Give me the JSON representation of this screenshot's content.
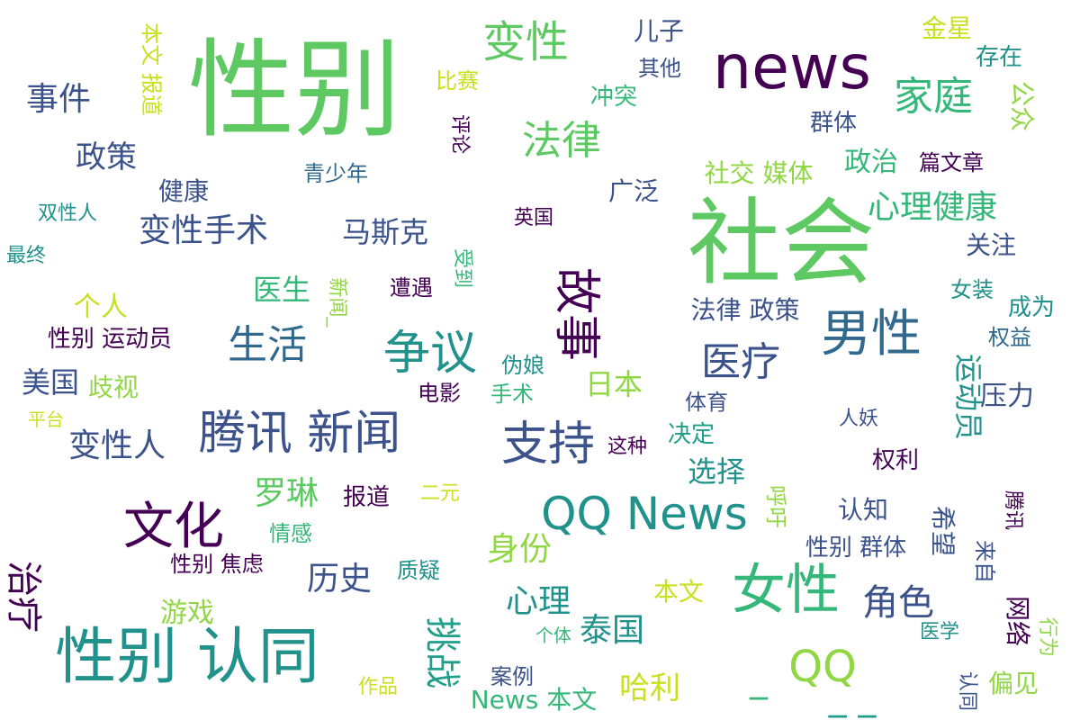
{
  "palette": {
    "dark_purple": "#440154",
    "indigo": "#3b528b",
    "teal_dark": "#31688e",
    "teal": "#21918c",
    "green_teal": "#1f9e89",
    "green": "#35b779",
    "light_green": "#5ec962",
    "lime": "#90d743",
    "yellow": "#c8e020"
  },
  "words": [
    "性别",
    "社会",
    "news",
    "QQ News",
    "性别 认同",
    "女性",
    "男性",
    "腾讯 新闻",
    "支持",
    "争议",
    "文化",
    "故事",
    "变性",
    "法律",
    "家庭",
    "事件",
    "政策",
    "变性手术",
    "变性人",
    "生活",
    "医疗",
    "身份",
    "角色",
    "心理健康",
    "治疗",
    "挑战",
    "历史",
    "心理",
    "泰国",
    "罗琳",
    "QQ",
    "_",
    "_ _",
    "马斯克",
    "运动员",
    "政治",
    "选择",
    "美国",
    "哈利",
    "News 本文",
    "儿子",
    "金星",
    "存在",
    "公众",
    "其他",
    "冲突",
    "比赛",
    "本文 报道",
    "评论",
    "群体",
    "篇文章",
    "青少年",
    "社交 媒体",
    "健康",
    "广泛",
    "双性人",
    "英国",
    "关注",
    "最终",
    "医生",
    "新闻_",
    "受到",
    "遭遇",
    "女装",
    "个人",
    "法律 政策",
    "成为",
    "性别 运动员",
    "权益",
    "伪娘",
    "日本",
    "歧视",
    "手术",
    "电影",
    "体育",
    "压力",
    "平台",
    "人妖",
    "这种",
    "决定",
    "权利",
    "报道",
    "二元",
    "呼吁",
    "认知",
    "腾讯",
    "希望",
    "情感",
    "来自",
    "性别 群体",
    "性别 焦虑",
    "质疑",
    "本文",
    "游戏",
    "网络",
    "个体",
    "行为",
    "医学",
    "案例",
    "作品",
    "认同",
    "偏见"
  ]
}
